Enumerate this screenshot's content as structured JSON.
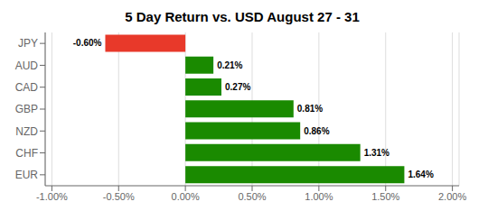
{
  "chart_data": {
    "type": "bar",
    "orientation": "horizontal",
    "title": "5 Day Return vs. USD August 27 - 31",
    "categories": [
      "JPY",
      "AUD",
      "CAD",
      "GBP",
      "NZD",
      "CHF",
      "EUR"
    ],
    "values": [
      -0.6,
      0.21,
      0.27,
      0.81,
      0.86,
      1.31,
      1.64
    ],
    "value_labels": [
      "-0.60%",
      "0.21%",
      "0.27%",
      "0.81%",
      "0.86%",
      "1.31%",
      "1.64%"
    ],
    "data_labels": true,
    "colors": [
      "#e8392a",
      "#1a8a00",
      "#1a8a00",
      "#1a8a00",
      "#1a8a00",
      "#1a8a00",
      "#1a8a00"
    ],
    "xlim": [
      -1.05,
      2.05
    ],
    "xticks": [
      {
        "value": -1.0,
        "label": "-1.00%"
      },
      {
        "value": -0.5,
        "label": "-0.50%"
      },
      {
        "value": 0.0,
        "label": "0.00%"
      },
      {
        "value": 0.5,
        "label": "0.50%"
      },
      {
        "value": 1.0,
        "label": "1.00%"
      },
      {
        "value": 1.5,
        "label": "1.50%"
      },
      {
        "value": 2.0,
        "label": "2.00%"
      }
    ],
    "grid": true
  }
}
